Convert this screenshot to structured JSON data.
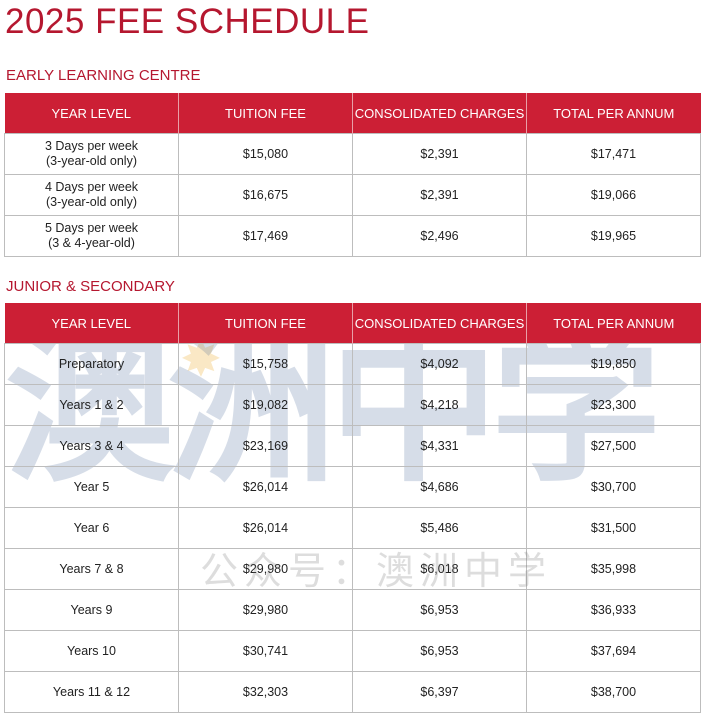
{
  "title": "2025 FEE SCHEDULE",
  "columns": [
    "YEAR LEVEL",
    "TUITION FEE",
    "CONSOLIDATED CHARGES",
    "TOTAL PER ANNUM"
  ],
  "early_learning": {
    "heading": "EARLY LEARNING CENTRE",
    "rows": [
      {
        "level": "3 Days per week",
        "level_note": "(3-year-old only)",
        "tuition": "$15,080",
        "charges": "$2,391",
        "total": "$17,471"
      },
      {
        "level": "4 Days per week",
        "level_note": "(3-year-old only)",
        "tuition": "$16,675",
        "charges": "$2,391",
        "total": "$19,066"
      },
      {
        "level": "5 Days per week",
        "level_note": "(3 & 4-year-old)",
        "tuition": "$17,469",
        "charges": "$2,496",
        "total": "$19,965"
      }
    ]
  },
  "junior_secondary": {
    "heading": "JUNIOR & SECONDARY",
    "rows": [
      {
        "level": "Preparatory",
        "tuition": "$15,758",
        "charges": "$4,092",
        "total": "$19,850"
      },
      {
        "level": "Years 1 & 2",
        "tuition": "$19,082",
        "charges": "$4,218",
        "total": "$23,300"
      },
      {
        "level": "Years 3 & 4",
        "tuition": "$23,169",
        "charges": "$4,331",
        "total": "$27,500"
      },
      {
        "level": "Year 5",
        "tuition": "$26,014",
        "charges": "$4,686",
        "total": "$30,700"
      },
      {
        "level": "Year 6",
        "tuition": "$26,014",
        "charges": "$5,486",
        "total": "$31,500"
      },
      {
        "level": "Years 7 & 8",
        "tuition": "$29,980",
        "charges": "$6,018",
        "total": "$35,998"
      },
      {
        "level": "Years 9",
        "tuition": "$29,980",
        "charges": "$6,953",
        "total": "$36,933"
      },
      {
        "level": "Years 10",
        "tuition": "$30,741",
        "charges": "$6,953",
        "total": "$37,694"
      },
      {
        "level": "Years 11 & 12",
        "tuition": "$32,303",
        "charges": "$6,397",
        "total": "$38,700"
      }
    ]
  },
  "watermark": {
    "large": "澳洲中学",
    "small": "公众号：澳洲中学"
  },
  "colors": {
    "accent": "#cc1f35",
    "title": "#b5172f"
  }
}
